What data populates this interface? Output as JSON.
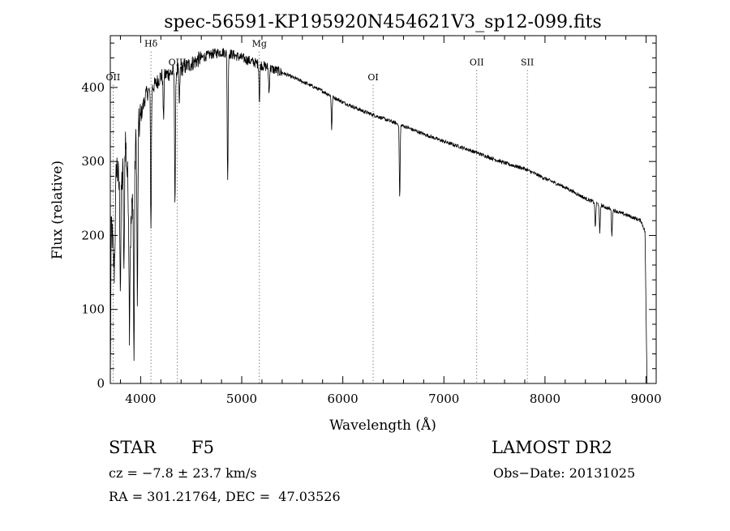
{
  "chart_data": {
    "type": "line",
    "title": "spec-56591-KP195920N454621V3_sp12-099.fits",
    "xlabel": "Wavelength (Å)",
    "ylabel": "Flux (relative)",
    "xlim": [
      3700,
      9100
    ],
    "ylim": [
      0,
      470
    ],
    "xticks": [
      4000,
      5000,
      6000,
      7000,
      8000,
      9000
    ],
    "yticks": [
      0,
      100,
      200,
      300,
      400
    ],
    "grid": false,
    "spectrum_anchors": [
      [
        3700,
        0
      ],
      [
        3710,
        220
      ],
      [
        3740,
        150
      ],
      [
        3760,
        300
      ],
      [
        3800,
        250
      ],
      [
        3850,
        330
      ],
      [
        3900,
        200
      ],
      [
        3950,
        320
      ],
      [
        4000,
        360
      ],
      [
        4050,
        390
      ],
      [
        4150,
        405
      ],
      [
        4200,
        415
      ],
      [
        4300,
        420
      ],
      [
        4400,
        425
      ],
      [
        4500,
        432
      ],
      [
        4600,
        440
      ],
      [
        4700,
        445
      ],
      [
        4800,
        448
      ],
      [
        4900,
        445
      ],
      [
        5000,
        440
      ],
      [
        5100,
        435
      ],
      [
        5200,
        430
      ],
      [
        5400,
        420
      ],
      [
        5600,
        408
      ],
      [
        5800,
        395
      ],
      [
        6000,
        380
      ],
      [
        6200,
        368
      ],
      [
        6400,
        358
      ],
      [
        6600,
        348
      ],
      [
        6800,
        337
      ],
      [
        7000,
        327
      ],
      [
        7200,
        318
      ],
      [
        7400,
        308
      ],
      [
        7600,
        298
      ],
      [
        7800,
        290
      ],
      [
        8000,
        277
      ],
      [
        8200,
        265
      ],
      [
        8400,
        250
      ],
      [
        8600,
        238
      ],
      [
        8800,
        228
      ],
      [
        8950,
        220
      ],
      [
        8990,
        205
      ],
      [
        9000,
        90
      ],
      [
        9010,
        0
      ]
    ],
    "absorption_lines": [
      {
        "x": 3800,
        "depth": 120
      },
      {
        "x": 3835,
        "depth": 170
      },
      {
        "x": 3889,
        "depth": 150
      },
      {
        "x": 3934,
        "depth": 260
      },
      {
        "x": 3968,
        "depth": 230
      },
      {
        "x": 4102,
        "depth": 190
      },
      {
        "x": 4226,
        "depth": 60
      },
      {
        "x": 4340,
        "depth": 180
      },
      {
        "x": 4383,
        "depth": 50
      },
      {
        "x": 4861,
        "depth": 175
      },
      {
        "x": 5175,
        "depth": 50
      },
      {
        "x": 5270,
        "depth": 35
      },
      {
        "x": 5890,
        "depth": 45
      },
      {
        "x": 6563,
        "depth": 100
      },
      {
        "x": 8498,
        "depth": 35
      },
      {
        "x": 8542,
        "depth": 40
      },
      {
        "x": 8662,
        "depth": 35
      }
    ],
    "line_markers": [
      {
        "label": "OII",
        "x": 3727,
        "y": 410
      },
      {
        "label": "Hδ",
        "x": 4102,
        "y": 455
      },
      {
        "label": "OIII",
        "x": 4363,
        "y": 430
      },
      {
        "label": "Mg",
        "x": 5175,
        "y": 455
      },
      {
        "label": "OI",
        "x": 6300,
        "y": 410
      },
      {
        "label": "OII",
        "x": 7325,
        "y": 430
      },
      {
        "label": "SII",
        "x": 7825,
        "y": 430
      }
    ]
  },
  "info": {
    "object_class": "STAR",
    "subclass": "F5",
    "survey": "LAMOST DR2",
    "cz": "cz = −7.8 ± 23.7 km/s",
    "obs_date": "Obs−Date: 20131025",
    "coords": "RA = 301.21764, DEC =  47.03526"
  }
}
